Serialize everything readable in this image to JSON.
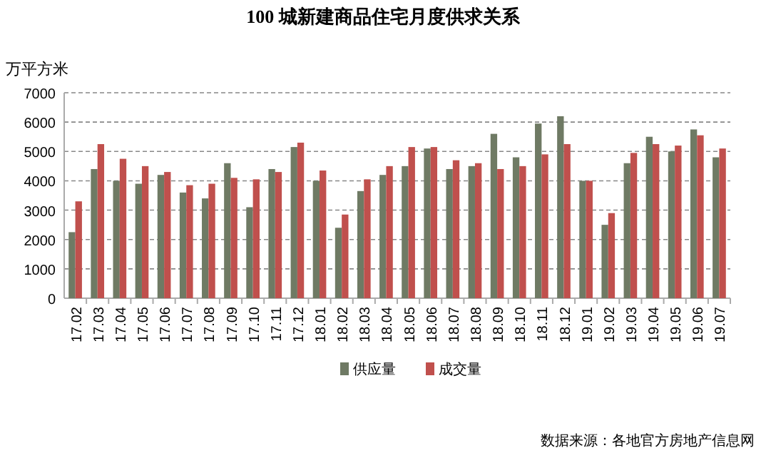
{
  "chart_data": {
    "type": "bar",
    "title": "100 城新建商品住宅月度供求关系",
    "ylabel": "万平方米",
    "categories": [
      "17.02",
      "17.03",
      "17.04",
      "17.05",
      "17.06",
      "17.07",
      "17.08",
      "17.09",
      "17.10",
      "17.11",
      "17.12",
      "18.01",
      "18.02",
      "18.03",
      "18.04",
      "18.05",
      "18.06",
      "18.07",
      "18.08",
      "18.09",
      "18.10",
      "18.11",
      "18.12",
      "19.01",
      "19.02",
      "19.03",
      "19.04",
      "19.05",
      "19.06",
      "19.07"
    ],
    "series": [
      {
        "name": "供应量",
        "color": "#6f7a64",
        "values": [
          2250,
          4400,
          4000,
          3900,
          4200,
          3600,
          3400,
          4600,
          3100,
          4400,
          5150,
          4000,
          2400,
          3650,
          4200,
          4500,
          5100,
          4400,
          4500,
          5600,
          4800,
          5950,
          6200,
          4000,
          2500,
          4600,
          5500,
          5000,
          5750,
          4800
        ]
      },
      {
        "name": "成交量",
        "color": "#c0504d",
        "values": [
          3300,
          5250,
          4750,
          4500,
          4300,
          3850,
          3900,
          4100,
          4050,
          4300,
          5300,
          4350,
          2850,
          4050,
          4500,
          5150,
          5150,
          4700,
          4600,
          4400,
          4500,
          4900,
          5250,
          4000,
          2900,
          4950,
          5250,
          5200,
          5550,
          5100
        ]
      }
    ],
    "ylim": [
      0,
      7000
    ],
    "yticks": [
      0,
      1000,
      2000,
      3000,
      4000,
      5000,
      6000,
      7000
    ],
    "grid": "y",
    "legend": "bottom",
    "annotations": [
      "数据来源：各地官方房地产信息网"
    ]
  }
}
